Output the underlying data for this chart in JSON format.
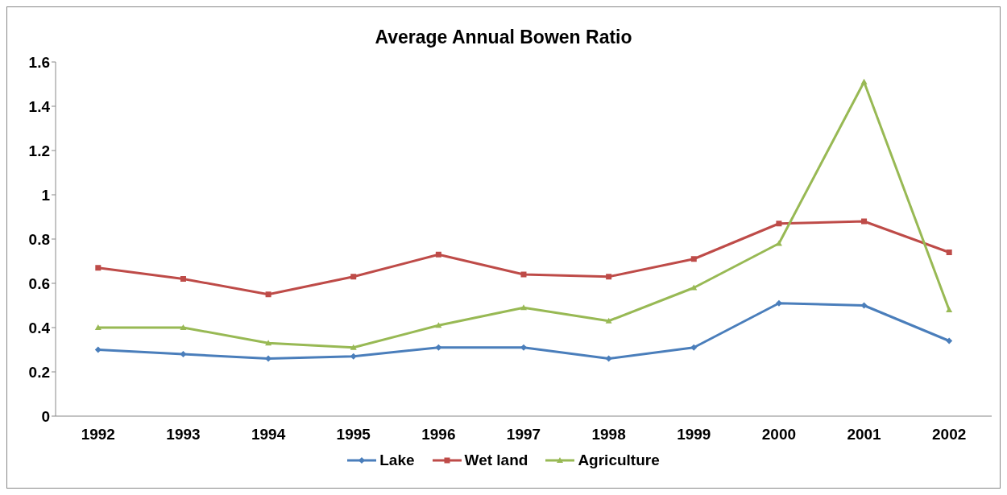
{
  "chart_data": {
    "type": "line",
    "title": "Average Annual Bowen Ratio",
    "categories": [
      "1992",
      "1993",
      "1994",
      "1995",
      "1996",
      "1997",
      "1998",
      "1999",
      "2000",
      "2001",
      "2002"
    ],
    "series": [
      {
        "name": "Lake",
        "color": "#4a7ebb",
        "marker": "diamond",
        "values": [
          0.3,
          0.28,
          0.26,
          0.27,
          0.31,
          0.31,
          0.26,
          0.31,
          0.51,
          0.5,
          0.34
        ]
      },
      {
        "name": "Wet land",
        "color": "#be4b48",
        "marker": "square",
        "values": [
          0.67,
          0.62,
          0.55,
          0.63,
          0.73,
          0.64,
          0.63,
          0.71,
          0.87,
          0.88,
          0.74
        ]
      },
      {
        "name": "Agriculture",
        "color": "#98b954",
        "marker": "triangle",
        "values": [
          0.4,
          0.4,
          0.33,
          0.31,
          0.41,
          0.49,
          0.43,
          0.58,
          0.78,
          1.51,
          0.48
        ]
      }
    ],
    "ylim": [
      0,
      1.6
    ],
    "yticks": [
      0,
      0.2,
      0.4,
      0.6,
      0.8,
      1,
      1.2,
      1.4,
      1.6
    ],
    "grid": false,
    "legend": "bottom",
    "line_style": "solid"
  }
}
